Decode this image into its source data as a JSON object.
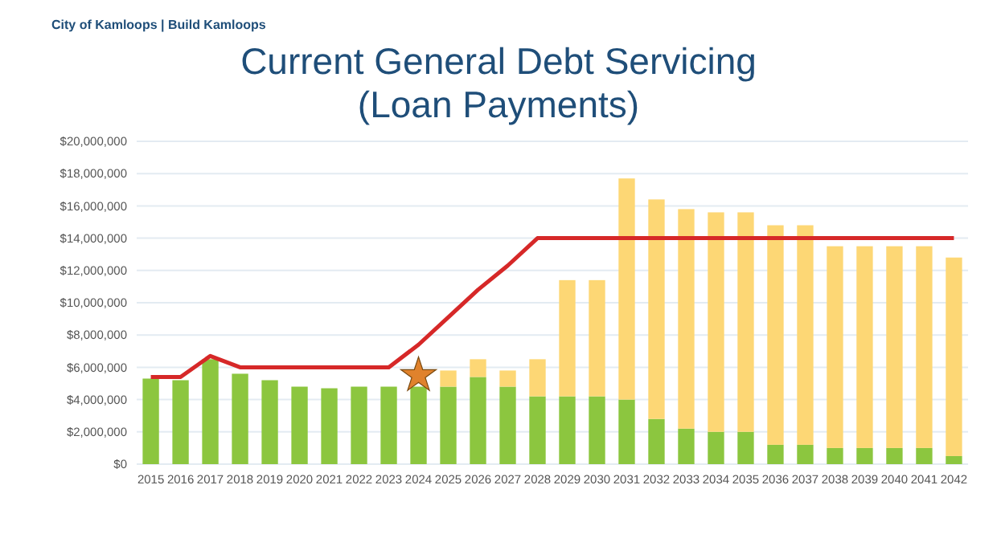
{
  "chart_data": {
    "type": "bar",
    "stacked": true,
    "title": "Current General Debt Servicing\n(Loan Payments)",
    "annotations": [
      "City of Kamloops | Build Kamloops"
    ],
    "categories": [
      "2015",
      "2016",
      "2017",
      "2018",
      "2019",
      "2020",
      "2021",
      "2022",
      "2023",
      "2024",
      "2025",
      "2026",
      "2027",
      "2028",
      "2029",
      "2030",
      "2031",
      "2032",
      "2033",
      "2034",
      "2035",
      "2036",
      "2037",
      "2038",
      "2039",
      "2040",
      "2041",
      "2042"
    ],
    "ylim": [
      0,
      20000000
    ],
    "yticks": [
      {
        "value": 0,
        "label": "$0"
      },
      {
        "value": 2000000,
        "label": "$2,000,000"
      },
      {
        "value": 4000000,
        "label": "$4,000,000"
      },
      {
        "value": 6000000,
        "label": "$6,000,000"
      },
      {
        "value": 8000000,
        "label": "$8,000,000"
      },
      {
        "value": 10000000,
        "label": "$10,000,000"
      },
      {
        "value": 12000000,
        "label": "$12,000,000"
      },
      {
        "value": 14000000,
        "label": "$14,000,000"
      },
      {
        "value": 16000000,
        "label": "$16,000,000"
      },
      {
        "value": 18000000,
        "label": "$18,000,000"
      },
      {
        "value": 20000000,
        "label": "$20,000,000"
      }
    ],
    "grid": "y",
    "series": [
      {
        "color": "#8cc63f",
        "values": [
          5300000,
          5200000,
          6500000,
          5600000,
          5200000,
          4800000,
          4700000,
          4800000,
          4800000,
          4800000,
          4800000,
          5400000,
          4800000,
          4200000,
          4200000,
          4200000,
          4000000,
          2800000,
          2200000,
          2000000,
          2000000,
          1200000,
          1200000,
          1000000,
          1000000,
          1000000,
          1000000,
          500000
        ]
      },
      {
        "color": "#fdd775",
        "values": [
          null,
          null,
          null,
          null,
          null,
          null,
          null,
          null,
          null,
          null,
          1000000,
          1100000,
          1000000,
          2300000,
          7200000,
          7200000,
          13700000,
          13600000,
          13600000,
          13600000,
          13600000,
          13600000,
          13600000,
          12500000,
          12500000,
          12500000,
          12500000,
          12300000
        ]
      },
      {
        "type": "line",
        "color": "#d62828",
        "line_style": "solid",
        "marker": "none",
        "values": [
          5400000,
          5400000,
          6700000,
          6000000,
          6000000,
          6000000,
          6000000,
          6000000,
          6000000,
          7400000,
          9100000,
          10800000,
          12300000,
          14000000,
          14000000,
          14000000,
          14000000,
          14000000,
          14000000,
          14000000,
          14000000,
          14000000,
          14000000,
          14000000,
          14000000,
          14000000,
          14000000,
          14000000
        ]
      },
      {
        "type": "scatter",
        "color": "#e0822c",
        "marker": "star",
        "values": [
          null,
          null,
          null,
          null,
          null,
          null,
          null,
          null,
          null,
          5500000,
          null,
          null,
          null,
          null,
          null,
          null,
          null,
          null,
          null,
          null,
          null,
          null,
          null,
          null,
          null,
          null,
          null,
          null
        ]
      }
    ]
  }
}
